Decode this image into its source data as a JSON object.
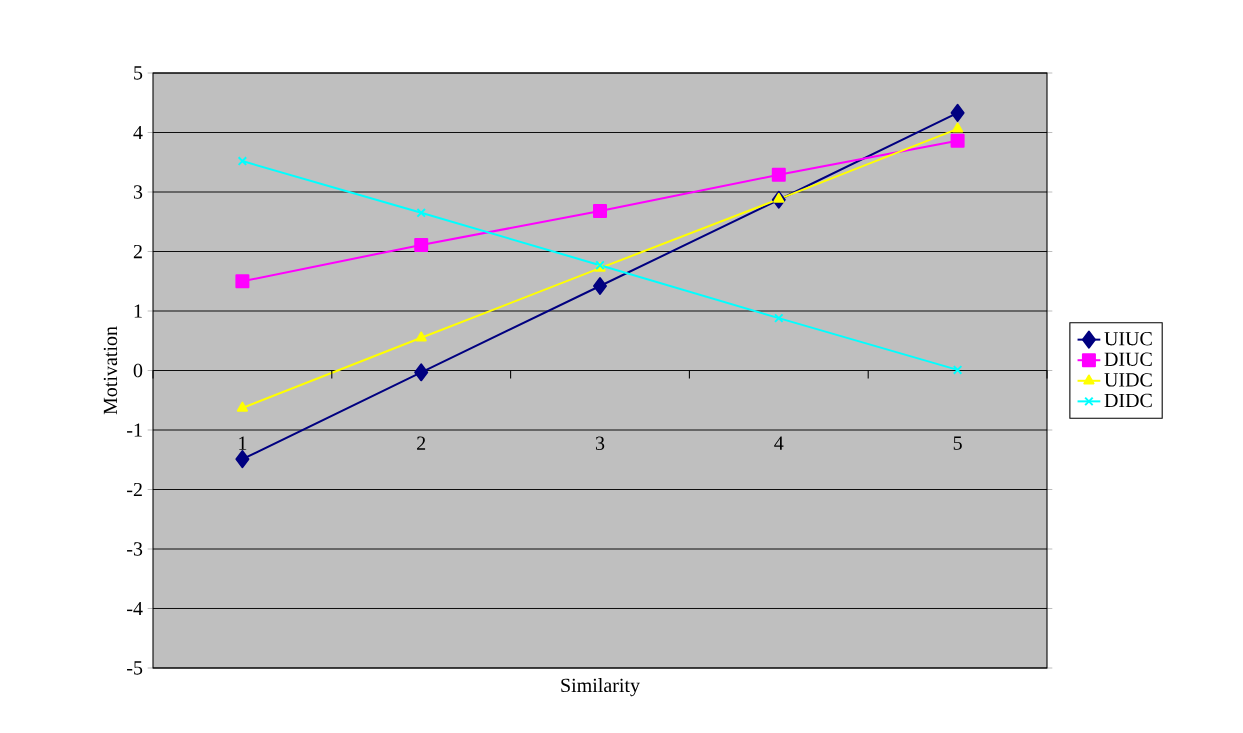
{
  "chart_data": {
    "type": "line",
    "xlabel": "Similarity",
    "ylabel": "Motivation",
    "categories": [
      "1",
      "2",
      "3",
      "4",
      "5"
    ],
    "series": [
      {
        "name": "UIUC",
        "color": "#000080",
        "marker": "diamond",
        "values": [
          -1.49,
          -0.03,
          1.42,
          2.87,
          4.33
        ]
      },
      {
        "name": "DIUC",
        "color": "#ff00ff",
        "marker": "square",
        "values": [
          1.5,
          2.11,
          2.68,
          3.29,
          3.86
        ]
      },
      {
        "name": "UIDC",
        "color": "#ffff00",
        "marker": "triangle",
        "values": [
          -0.63,
          0.55,
          1.72,
          2.88,
          4.06
        ]
      },
      {
        "name": "DIDC",
        "color": "#00ffff",
        "marker": "cross",
        "values": [
          3.52,
          2.65,
          1.77,
          0.88,
          0.01
        ]
      }
    ],
    "ylim": [
      -5,
      5
    ],
    "yticks": [
      -5,
      -4,
      -3,
      -2,
      -1,
      0,
      1,
      2,
      3,
      4,
      5
    ],
    "grid": "y",
    "legend": "right"
  }
}
